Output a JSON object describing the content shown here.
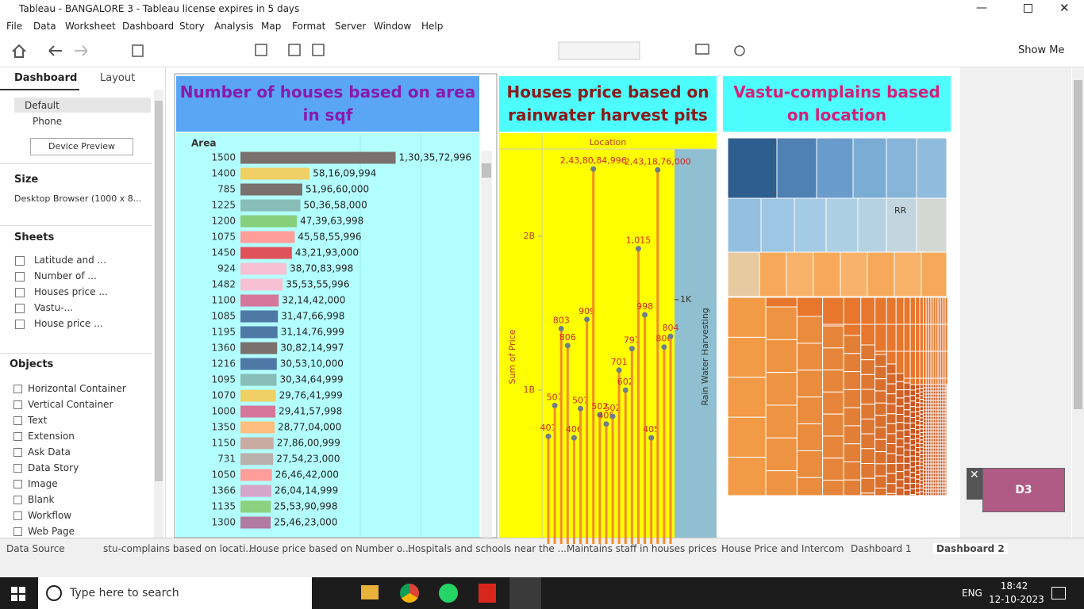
{
  "window": {
    "title": "Tableau - BANGALORE 3 - Tableau license expires in 5 days"
  },
  "menu": [
    "File",
    "Data",
    "Worksheet",
    "Dashboard",
    "Story",
    "Analysis",
    "Map",
    "Format",
    "Server",
    "Window",
    "Help"
  ],
  "toolbar": {
    "show_me": "Show Me"
  },
  "sidebar": {
    "tabs": [
      "Dashboard",
      "Layout"
    ],
    "devices": [
      "Default",
      "Phone"
    ],
    "device_preview": "Device Preview",
    "size_title": "Size",
    "size_value": "Desktop Browser (1000 x 8...",
    "sheets_title": "Sheets",
    "sheets": [
      "Latitude and ...",
      "Number of ...",
      "Houses price ...",
      "Vastu-...",
      "House price ..."
    ],
    "objects_title": "Objects",
    "objects": [
      "Horizontal Container",
      "Vertical Container",
      "Text",
      "Extension",
      "Ask Data",
      "Data Story",
      "Image",
      "Blank",
      "Workflow",
      "Web Page"
    ]
  },
  "chart_data": [
    {
      "type": "bar",
      "title": "Number of houses based on area in sqf",
      "axis_header": "Area",
      "categories": [
        "1500",
        "1400",
        "785",
        "1225",
        "1200",
        "1075",
        "1450",
        "924",
        "1482",
        "1100",
        "1085",
        "1195",
        "1360",
        "1216",
        "1095",
        "1070",
        "1000",
        "1350",
        "1150",
        "731",
        "1050",
        "1366",
        "1135",
        "1300"
      ],
      "values": [
        1303572996,
        581609994,
        519660000,
        503658000,
        473963998,
        455855996,
        432193000,
        387083998,
        355355996,
        321442000,
        314766998,
        311476999,
        308214997,
        305310000,
        303464999,
        297641999,
        294157998,
        287704000,
        278600999,
        275423000,
        264642000,
        260414999,
        255390998,
        254623000
      ],
      "value_labels": [
        "1,30,35,72,996",
        "58,16,09,994",
        "51,96,60,000",
        "50,36,58,000",
        "47,39,63,998",
        "45,58,55,996",
        "43,21,93,000",
        "38,70,83,998",
        "35,53,55,996",
        "32,14,42,000",
        "31,47,66,998",
        "31,14,76,999",
        "30,82,14,997",
        "30,53,10,000",
        "30,34,64,999",
        "29,76,41,999",
        "29,41,57,998",
        "28,77,04,000",
        "27,86,00,999",
        "27,54,23,000",
        "26,46,42,000",
        "26,04,14,999",
        "25,53,90,998",
        "25,46,23,000"
      ],
      "colors": [
        "#7a706e",
        "#f0cf64",
        "#7a706e",
        "#89bdb7",
        "#86d07c",
        "#ff9d9b",
        "#e0525a",
        "#f7c0d3",
        "#f7c0d3",
        "#d6769a",
        "#4e79a7",
        "#4e79a7",
        "#7a706e",
        "#4e79a7",
        "#89bdb7",
        "#f0cf64",
        "#d6769a",
        "#ffbe7d",
        "#c9aba2",
        "#bab0ac",
        "#ff9d9b",
        "#d4a6c8",
        "#8cd17d",
        "#b07aa1"
      ],
      "xlim": [
        0,
        1780000000
      ]
    },
    {
      "type": "scatter",
      "title": "Houses price based on rainwater harvest pits",
      "x_label": "Location",
      "y_label": "Sum of Price",
      "y2_label": "Rain Water Harvesting",
      "point_labels": [
        "401",
        "507",
        "803",
        "806",
        "406",
        "507",
        "909",
        "2,43,80,84,996",
        "502",
        "405",
        "502",
        "701",
        "602",
        "797",
        "1,015",
        "998",
        "405",
        "2,43,18,76,000",
        "806",
        "804"
      ],
      "values": [
        700000000,
        900000000,
        1400000000,
        1290000000,
        690000000,
        880000000,
        1460000000,
        2438084996,
        840000000,
        780000000,
        830000000,
        1130000000,
        1000000000,
        1270000000,
        1920000000,
        1490000000,
        690000000,
        2431876000,
        1280000000,
        1350000000
      ],
      "color": "#f28e2b",
      "ylim": [
        0,
        2557000000
      ],
      "yticks": [
        {
          "value": 1000000000,
          "label": "1B"
        },
        {
          "value": 2000000000,
          "label": "2B"
        }
      ],
      "y2lim": [
        0,
        1610
      ],
      "y2ticks": [
        {
          "value": 1000,
          "label": "1K"
        }
      ]
    },
    {
      "type": "treemap",
      "title": "Vastu-complains based on location",
      "labels": [
        "RR"
      ]
    }
  ],
  "float_card": {
    "label": "D3"
  },
  "tabs": [
    "Data Source",
    "stu-complains based on locati...",
    "House price based on Number o...",
    "Hospitals and schools near the ...",
    "Maintains staff in houses prices",
    "House Price and Intercom",
    "Dashboard 1",
    "Dashboard 2"
  ],
  "taskbar": {
    "search": "Type here to search",
    "language": "ENG",
    "time": "18:42",
    "date": "12-10-2023"
  }
}
